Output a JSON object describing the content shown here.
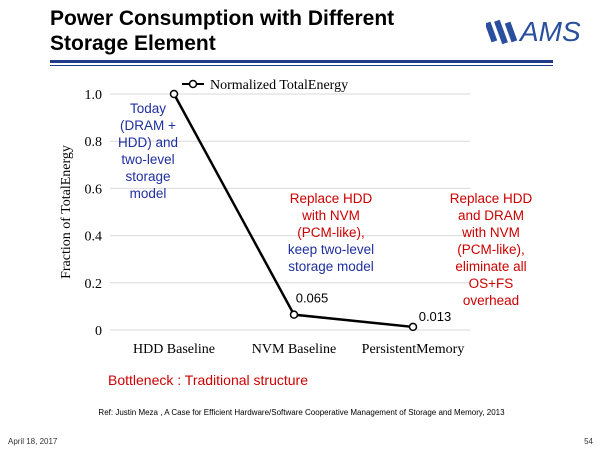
{
  "slide": {
    "title_line1": "Power Consumption with Different",
    "title_line2": "Storage Element",
    "logo_text": "AMS",
    "bottleneck": "Bottleneck : Traditional structure",
    "reference": "Ref: Justin Meza , A Case for Efficient Hardware/Software Cooperative Management of Storage and Memory, 2013",
    "date": "April 18, 2017",
    "page_number": "54"
  },
  "annotations": [
    {
      "text": "Today\n(DRAM +\nHDD) and\ntwo-level\nstorage\nmodel",
      "color": "#1f2fa0"
    },
    {
      "text": "Replace HDD\nwith NVM\n(PCM-like),\nkeep two-level\nstorage model",
      "color_line1_to_3": "#cc0000",
      "color": "#1f2fa0"
    },
    {
      "text": "Replace HDD\nand DRAM\nwith NVM\n(PCM-like),\neliminate all\nOS+FS\noverhead",
      "color": "#cc0000"
    }
  ],
  "chart_data": {
    "type": "line",
    "categories": [
      "HDD Baseline",
      "NVM Baseline",
      "PersistentMemory"
    ],
    "series": [
      {
        "name": "Normalized TotalEnergy",
        "values": [
          1.0,
          0.065,
          0.013
        ]
      }
    ],
    "data_labels": [
      "",
      "0.065",
      "0.013"
    ],
    "ylabel": "Fraction of TotalEnergy",
    "xlabel": "",
    "ylim": [
      0,
      1.0
    ],
    "yticks": [
      0,
      0.2,
      0.4,
      0.6,
      0.8,
      1.0
    ],
    "ytick_labels": [
      "0",
      "0.2",
      "0.4",
      "0.6",
      "0.8",
      "1.0"
    ],
    "grid": true,
    "legend_position": "top",
    "line_color": "#000000",
    "marker": "open-circle"
  }
}
